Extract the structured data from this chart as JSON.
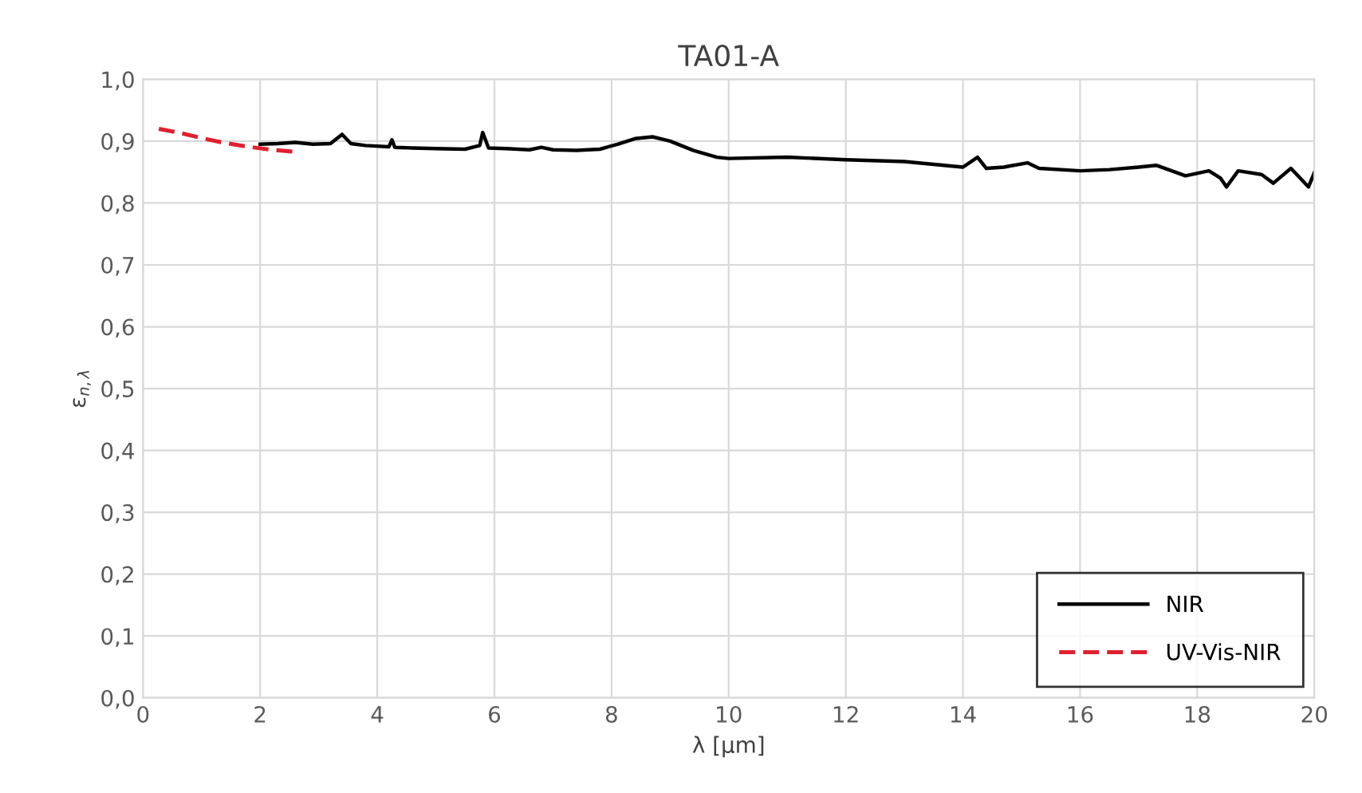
{
  "chart_data": {
    "type": "line",
    "title": "TA01-A",
    "xlabel": "λ [µm]",
    "ylabel": "ε$_{n,λ}$",
    "series": [
      {
        "name": "NIR",
        "color": "#000000",
        "line_style": "solid",
        "x": [
          2,
          2.3,
          2.6,
          2.9,
          3.2,
          3.4,
          3.55,
          3.8,
          4.2,
          4.25,
          4.3,
          4.6,
          5,
          5.5,
          5.75,
          5.8,
          5.9,
          6.2,
          6.6,
          6.8,
          7,
          7.4,
          7.8,
          8.1,
          8.4,
          8.7,
          9,
          9.4,
          9.8,
          10,
          11,
          12,
          13,
          14,
          14.25,
          14.4,
          14.7,
          15.1,
          15.3,
          16,
          16.5,
          17,
          17.3,
          17.8,
          18.2,
          18.4,
          18.5,
          18.7,
          19.1,
          19.3,
          19.6,
          19.9,
          20
        ],
        "values": [
          0.895,
          0.896,
          0.898,
          0.895,
          0.896,
          0.911,
          0.896,
          0.893,
          0.891,
          0.902,
          0.89,
          0.889,
          0.888,
          0.887,
          0.893,
          0.914,
          0.889,
          0.888,
          0.886,
          0.89,
          0.886,
          0.885,
          0.887,
          0.895,
          0.904,
          0.907,
          0.9,
          0.885,
          0.874,
          0.872,
          0.874,
          0.87,
          0.867,
          0.858,
          0.874,
          0.856,
          0.858,
          0.865,
          0.856,
          0.852,
          0.854,
          0.858,
          0.861,
          0.844,
          0.852,
          0.84,
          0.826,
          0.852,
          0.846,
          0.832,
          0.856,
          0.826,
          0.849
        ]
      },
      {
        "name": "UV-Vis-NIR",
        "color": "#e0202f",
        "line_style": "dashed",
        "x": [
          0.27,
          0.6,
          1,
          1.4,
          1.8,
          2.2,
          2.55
        ],
        "values": [
          0.92,
          0.914,
          0.905,
          0.897,
          0.891,
          0.886,
          0.883
        ]
      }
    ],
    "xlim": [
      0,
      20
    ],
    "xticks": [
      0,
      2,
      4,
      6,
      8,
      10,
      12,
      14,
      16,
      18,
      20
    ],
    "ylim": [
      0,
      1
    ],
    "yticks": [
      {
        "value": 0,
        "label": "0,0"
      },
      {
        "value": 0.1,
        "label": "0,1"
      },
      {
        "value": 0.2,
        "label": "0,2"
      },
      {
        "value": 0.3,
        "label": "0,3"
      },
      {
        "value": 0.4,
        "label": "0,4"
      },
      {
        "value": 0.5,
        "label": "0,5"
      },
      {
        "value": 0.6,
        "label": "0,6"
      },
      {
        "value": 0.7,
        "label": "0,7"
      },
      {
        "value": 0.8,
        "label": "0,8"
      },
      {
        "value": 0.9,
        "label": "0,9"
      },
      {
        "value": 1,
        "label": "1,0"
      }
    ],
    "grid": true,
    "legend": "bottom right"
  }
}
